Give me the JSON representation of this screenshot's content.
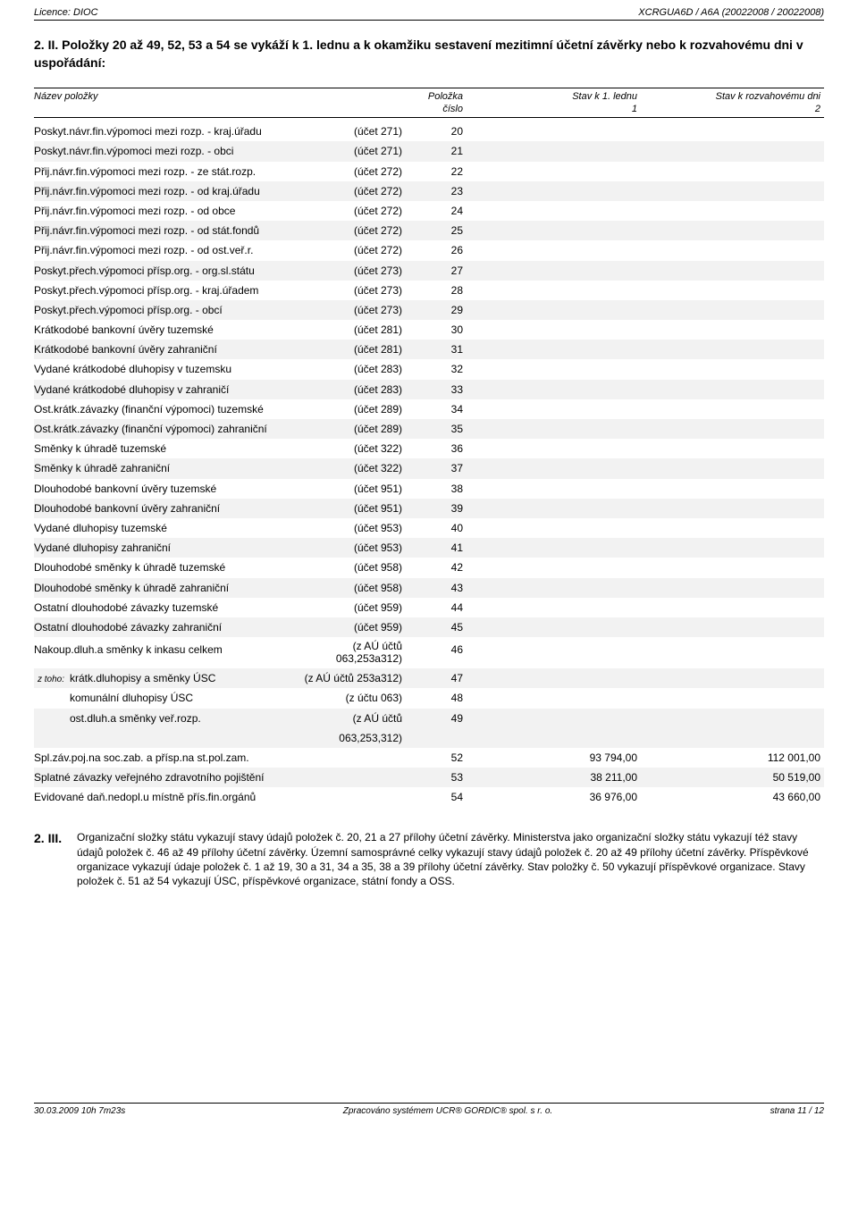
{
  "header": {
    "left": "Licence: DIOC",
    "right": "XCRGUA6D / A6A (20022008 / 20022008)"
  },
  "section_title": "2. II. Položky 20 až 49, 52, 53 a 54 se vykáží k 1. lednu a k okamžiku sestavení mezitimní účetní závěrky nebo k rozvahovému dni v uspořádání:",
  "columns": {
    "name": "Název položky",
    "polozka": "Položka",
    "cislo": "číslo",
    "stav1": "Stav k 1. lednu",
    "stav1_num": "1",
    "stav2": "Stav k rozvahovému dni",
    "stav2_num": "2"
  },
  "rows": [
    {
      "name": "Poskyt.návr.fin.výpomoci mezi rozp. - kraj.úřadu",
      "note": "(účet 271)",
      "num": "20",
      "v1": "",
      "v2": "",
      "bg": false
    },
    {
      "name": "Poskyt.návr.fin.výpomoci mezi rozp. - obci",
      "note": "(účet 271)",
      "num": "21",
      "v1": "",
      "v2": "",
      "bg": true
    },
    {
      "name": "Přij.návr.fin.výpomoci mezi rozp. - ze stát.rozp.",
      "note": "(účet 272)",
      "num": "22",
      "v1": "",
      "v2": "",
      "bg": false
    },
    {
      "name": "Přij.návr.fin.výpomoci mezi rozp. - od kraj.úřadu",
      "note": "(účet 272)",
      "num": "23",
      "v1": "",
      "v2": "",
      "bg": true
    },
    {
      "name": "Přij.návr.fin.výpomoci mezi rozp. - od obce",
      "note": "(účet 272)",
      "num": "24",
      "v1": "",
      "v2": "",
      "bg": false
    },
    {
      "name": "Přij.návr.fin.výpomoci mezi rozp. - od stát.fondů",
      "note": "(účet 272)",
      "num": "25",
      "v1": "",
      "v2": "",
      "bg": true
    },
    {
      "name": "Přij.návr.fin.výpomoci mezi rozp. - od ost.veř.r.",
      "note": "(účet 272)",
      "num": "26",
      "v1": "",
      "v2": "",
      "bg": false
    },
    {
      "name": "Poskyt.přech.výpomoci přísp.org. - org.sl.státu",
      "note": "(účet 273)",
      "num": "27",
      "v1": "",
      "v2": "",
      "bg": true
    },
    {
      "name": "Poskyt.přech.výpomoci přísp.org. - kraj.úřadem",
      "note": "(účet 273)",
      "num": "28",
      "v1": "",
      "v2": "",
      "bg": false
    },
    {
      "name": "Poskyt.přech.výpomoci přísp.org. - obcí",
      "note": "(účet 273)",
      "num": "29",
      "v1": "",
      "v2": "",
      "bg": true
    },
    {
      "name": "Krátkodobé bankovní úvěry tuzemské",
      "note": "(účet 281)",
      "num": "30",
      "v1": "",
      "v2": "",
      "bg": false
    },
    {
      "name": "Krátkodobé bankovní úvěry zahraniční",
      "note": "(účet 281)",
      "num": "31",
      "v1": "",
      "v2": "",
      "bg": true
    },
    {
      "name": "Vydané krátkodobé dluhopisy v tuzemsku",
      "note": "(účet 283)",
      "num": "32",
      "v1": "",
      "v2": "",
      "bg": false
    },
    {
      "name": "Vydané krátkodobé dluhopisy v zahraničí",
      "note": "(účet 283)",
      "num": "33",
      "v1": "",
      "v2": "",
      "bg": true
    },
    {
      "name": "Ost.krátk.závazky (finanční výpomoci) tuzemské",
      "note": "(účet 289)",
      "num": "34",
      "v1": "",
      "v2": "",
      "bg": false
    },
    {
      "name": "Ost.krátk.závazky (finanční výpomoci) zahraniční",
      "note": "(účet 289)",
      "num": "35",
      "v1": "",
      "v2": "",
      "bg": true
    },
    {
      "name": "Směnky k úhradě tuzemské",
      "note": "(účet 322)",
      "num": "36",
      "v1": "",
      "v2": "",
      "bg": false
    },
    {
      "name": "Směnky k úhradě zahraniční",
      "note": "(účet 322)",
      "num": "37",
      "v1": "",
      "v2": "",
      "bg": true
    },
    {
      "name": "Dlouhodobé bankovní úvěry tuzemské",
      "note": "(účet 951)",
      "num": "38",
      "v1": "",
      "v2": "",
      "bg": false
    },
    {
      "name": "Dlouhodobé bankovní úvěry zahraniční",
      "note": "(účet 951)",
      "num": "39",
      "v1": "",
      "v2": "",
      "bg": true
    },
    {
      "name": "Vydané dluhopisy tuzemské",
      "note": "(účet 953)",
      "num": "40",
      "v1": "",
      "v2": "",
      "bg": false
    },
    {
      "name": "Vydané dluhopisy zahraniční",
      "note": "(účet 953)",
      "num": "41",
      "v1": "",
      "v2": "",
      "bg": true
    },
    {
      "name": "Dlouhodobé směnky k úhradě tuzemské",
      "note": "(účet 958)",
      "num": "42",
      "v1": "",
      "v2": "",
      "bg": false
    },
    {
      "name": "Dlouhodobé směnky k úhradě zahraniční",
      "note": "(účet 958)",
      "num": "43",
      "v1": "",
      "v2": "",
      "bg": true
    },
    {
      "name": "Ostatní dlouhodobé závazky tuzemské",
      "note": "(účet 959)",
      "num": "44",
      "v1": "",
      "v2": "",
      "bg": false
    },
    {
      "name": "Ostatní dlouhodobé závazky zahraniční",
      "note": "(účet 959)",
      "num": "45",
      "v1": "",
      "v2": "",
      "bg": true
    },
    {
      "name": "Nakoup.dluh.a směnky k inkasu celkem",
      "note": "(z AÚ účtů 063,253a312)",
      "num": "46",
      "v1": "",
      "v2": "",
      "bg": false,
      "multiline": true
    },
    {
      "name": "krátk.dluhopisy a směnky ÚSC",
      "note": "(z AÚ účtů 253a312)",
      "num": "47",
      "v1": "",
      "v2": "",
      "bg": true,
      "sub": true,
      "ztoho": true
    },
    {
      "name": "komunální dluhopisy ÚSC",
      "note": "(z účtu 063)",
      "num": "48",
      "v1": "",
      "v2": "",
      "bg": false,
      "sub": true
    },
    {
      "name": "ost.dluh.a směnky veř.rozp.",
      "note": "(z AÚ účtů 063,253,312)",
      "num": "49",
      "v1": "",
      "v2": "",
      "bg": true,
      "sub": true
    },
    {
      "name": "Spl.záv.poj.na soc.zab. a přísp.na st.pol.zam.",
      "note": "",
      "num": "52",
      "v1": "93 794,00",
      "v2": "112 001,00",
      "bg": false
    },
    {
      "name": "Splatné závazky veřejného zdravotního pojištění",
      "note": "",
      "num": "53",
      "v1": "38 211,00",
      "v2": "50 519,00",
      "bg": true
    },
    {
      "name": "Evidované daň.nedopl.u místně přís.fin.orgánů",
      "note": "",
      "num": "54",
      "v1": "36 976,00",
      "v2": "43 660,00",
      "bg": false
    }
  ],
  "ztoho_label": "z toho:",
  "note": {
    "label": "2. III.",
    "text": "Organizační složky státu vykazují stavy údajů položek č. 20, 21 a 27 přílohy účetní závěrky. Ministerstva jako organizační složky státu vykazují též stavy údajů položek č. 46 až 49 přílohy účetní závěrky. Územní samosprávné celky vykazují stavy údajů položek č. 20 až 49 přílohy účetní závěrky. Příspěvkové organizace vykazují údaje položek č. 1 až 19, 30 a 31, 34 a 35, 38 a 39 přílohy účetní závěrky. Stav položky č. 50 vykazují příspěvkové organizace. Stavy položek č. 51 až 54 vykazují ÚSC, příspěvkové organizace, státní fondy a OSS."
  },
  "footer": {
    "left": "30.03.2009 10h 7m23s",
    "center": "Zpracováno systémem UCR® GORDIC® spol. s r. o.",
    "right": "strana 11 / 12"
  }
}
